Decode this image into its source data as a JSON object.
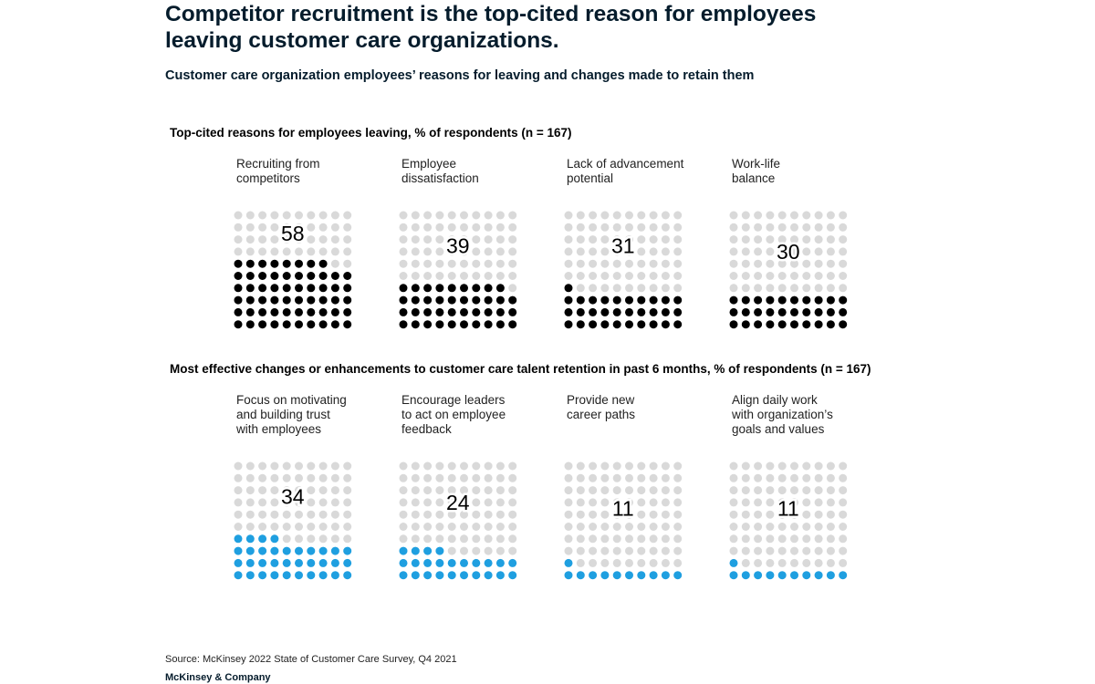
{
  "title": "Competitor recruitment is the top-cited reason for employees leaving customer care organizations.",
  "subtitle": "Customer care organization employees’ reasons for leaving and changes made to retain them",
  "source": "Source: McKinsey 2022 State of Customer Care Survey, Q4 2021",
  "brand": "McKinsey & Company",
  "colors": {
    "empty_dot": "#d9d9d9",
    "leaving_dot": "#000000",
    "retention_dot": "#1f9fe0"
  },
  "chart_data": [
    {
      "type": "waffle",
      "title": "Top-cited reasons for employees leaving, % of respondents (n = 167)",
      "series_color": "#000000",
      "categories": [
        "Recruiting from\ncompetitors",
        "Employee\ndissatisfaction",
        "Lack of advancement\npotential",
        "Work-life\nbalance"
      ],
      "values": [
        58,
        39,
        31,
        30
      ]
    },
    {
      "type": "waffle",
      "title": "Most effective changes or enhancements to customer care talent retention in past 6 months, % of respondents (n = 167)",
      "series_color": "#1f9fe0",
      "categories": [
        "Focus on motivating\nand building trust\nwith employees",
        "Encourage leaders\nto act on employee\nfeedback",
        "Provide new\ncareer paths",
        "Align daily work\nwith organization’s\ngoals and values"
      ],
      "values": [
        34,
        24,
        11,
        11
      ]
    }
  ]
}
